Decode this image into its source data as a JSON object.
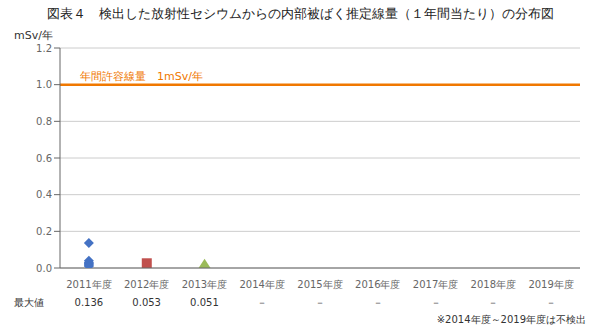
{
  "chart_data": {
    "type": "bar",
    "title": "図表４　検出した放射性セシウムからの内部被ばく推定線量（１年間当たり）の分布図",
    "ylabel": "mSv/年",
    "categories": [
      "2011年度",
      "2012年度",
      "2013年度",
      "2014年度",
      "2015年度",
      "2016年度",
      "2017年度",
      "2018年度",
      "2019年度"
    ],
    "ylim": [
      0,
      1.2
    ],
    "yticks": [
      {
        "value": 0.0,
        "label": "0.0"
      },
      0.2,
      0.4,
      0.6,
      0.8,
      {
        "value": 1.0,
        "label": "1.0"
      },
      1.2
    ],
    "grid": true,
    "series": [
      {
        "type": "scatter",
        "marker": "diamond",
        "color": "#4472c4",
        "x": [
          "2011年度",
          "2011年度",
          "2011年度",
          "2011年度",
          "2011年度",
          "2011年度",
          "2011年度"
        ],
        "values": [
          0.136,
          0.04,
          0.03,
          0.025,
          0.02,
          0.015,
          0.01
        ]
      },
      {
        "type": "bar",
        "color": "#c0504d",
        "x": [
          "2012年度"
        ],
        "values": [
          0.053
        ]
      },
      {
        "type": "bar",
        "marker": "triangle",
        "color": "#9bbb59",
        "x": [
          "2013年度"
        ],
        "values": [
          0.051
        ]
      }
    ],
    "hline": {
      "y": 1.0,
      "label": "年間許容線量　1mSv/年",
      "color": "#f07800"
    },
    "table_row": {
      "label": "最大値",
      "values": [
        "0.136",
        "0.053",
        "0.051",
        "－",
        "－",
        "－",
        "－",
        "－",
        "－"
      ]
    },
    "footnote": "※2014年度～2019年度は不検出"
  }
}
